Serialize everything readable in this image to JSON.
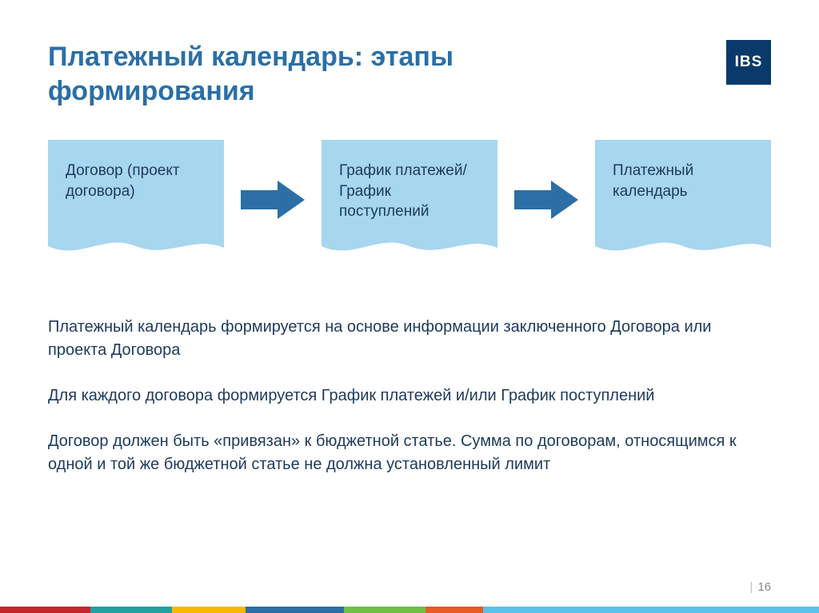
{
  "title": "Платежный календарь: этапы формирования",
  "logo": {
    "text": "IBS",
    "bg": "#0a3a6b",
    "fg": "#ffffff"
  },
  "flow": {
    "type": "flowchart",
    "node_bg": "#a7d6ef",
    "node_text_color": "#1d3a5c",
    "node_fontsize": 19,
    "arrow_color": "#2b6fa6",
    "nodes": [
      {
        "label": "Договор (проект договора)"
      },
      {
        "label": "График платежей/График поступлений"
      },
      {
        "label": "Платежный календарь"
      }
    ]
  },
  "paragraphs": [
    "Платежный календарь формируется на основе информации заключенного Договора или проекта Договора",
    "Для каждого договора формируется График платежей и/или График поступлений",
    "Договор должен быть «привязан» к бюджетной статье. Сумма по договорам, относящимся к одной и той же бюджетной статье  не должна установленный лимит"
  ],
  "page_number": "16",
  "footer_stripe": {
    "segments": [
      {
        "color": "#c3272b",
        "width": 11
      },
      {
        "color": "#21a0a0",
        "width": 10
      },
      {
        "color": "#f8b800",
        "width": 9
      },
      {
        "color": "#2b6fa6",
        "width": 12
      },
      {
        "color": "#6fbf44",
        "width": 10
      },
      {
        "color": "#e75a24",
        "width": 7
      },
      {
        "color": "#59c2e8",
        "width": 41
      }
    ]
  },
  "colors": {
    "title": "#2b6fa6",
    "body_text": "#1d3a5c",
    "background": "#ffffff"
  }
}
